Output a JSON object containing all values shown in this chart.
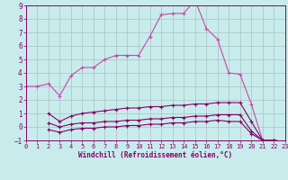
{
  "xlabel": "Windchill (Refroidissement éolien,°C)",
  "bg_color": "#c8ecec",
  "grid_color": "#b0c8c8",
  "line_color": "#880066",
  "line_color2": "#cc44aa",
  "xmin": 0,
  "xmax": 23,
  "ymin": -1,
  "ymax": 9,
  "series1_x": [
    0,
    1,
    2,
    3,
    4,
    5,
    6,
    7,
    8,
    9,
    10,
    11,
    12,
    13,
    14,
    15,
    16,
    17,
    18,
    19,
    20,
    21,
    22,
    23
  ],
  "series1_y": [
    3.0,
    3.0,
    3.2,
    2.3,
    3.8,
    4.4,
    4.4,
    5.0,
    5.3,
    5.3,
    5.3,
    6.7,
    8.3,
    8.4,
    8.4,
    9.4,
    7.3,
    6.5,
    4.0,
    3.9,
    1.7,
    -1.0,
    -1.0,
    -1.1
  ],
  "series2_x": [
    2,
    3,
    4,
    5,
    6,
    7,
    8,
    9,
    10,
    11,
    12,
    13,
    14,
    15,
    16,
    17,
    18,
    19,
    20,
    21,
    22,
    23
  ],
  "series2_y": [
    1.0,
    0.4,
    0.8,
    1.0,
    1.1,
    1.2,
    1.3,
    1.4,
    1.4,
    1.5,
    1.5,
    1.6,
    1.6,
    1.7,
    1.7,
    1.8,
    1.8,
    1.8,
    0.4,
    -1.0,
    -1.0,
    -1.1
  ],
  "series3_x": [
    2,
    3,
    4,
    5,
    6,
    7,
    8,
    9,
    10,
    11,
    12,
    13,
    14,
    15,
    16,
    17,
    18,
    19,
    20,
    21,
    22,
    23
  ],
  "series3_y": [
    0.3,
    0.0,
    0.2,
    0.3,
    0.3,
    0.4,
    0.4,
    0.5,
    0.5,
    0.6,
    0.6,
    0.7,
    0.7,
    0.8,
    0.8,
    0.9,
    0.9,
    0.9,
    -0.3,
    -1.0,
    -1.0,
    -1.1
  ],
  "series4_x": [
    2,
    3,
    4,
    5,
    6,
    7,
    8,
    9,
    10,
    11,
    12,
    13,
    14,
    15,
    16,
    17,
    18,
    19,
    20,
    21,
    22,
    23
  ],
  "series4_y": [
    -0.2,
    -0.4,
    -0.2,
    -0.1,
    -0.1,
    0.0,
    0.0,
    0.1,
    0.1,
    0.2,
    0.2,
    0.3,
    0.3,
    0.4,
    0.4,
    0.5,
    0.4,
    0.4,
    -0.5,
    -1.0,
    -1.0,
    -1.1
  ]
}
